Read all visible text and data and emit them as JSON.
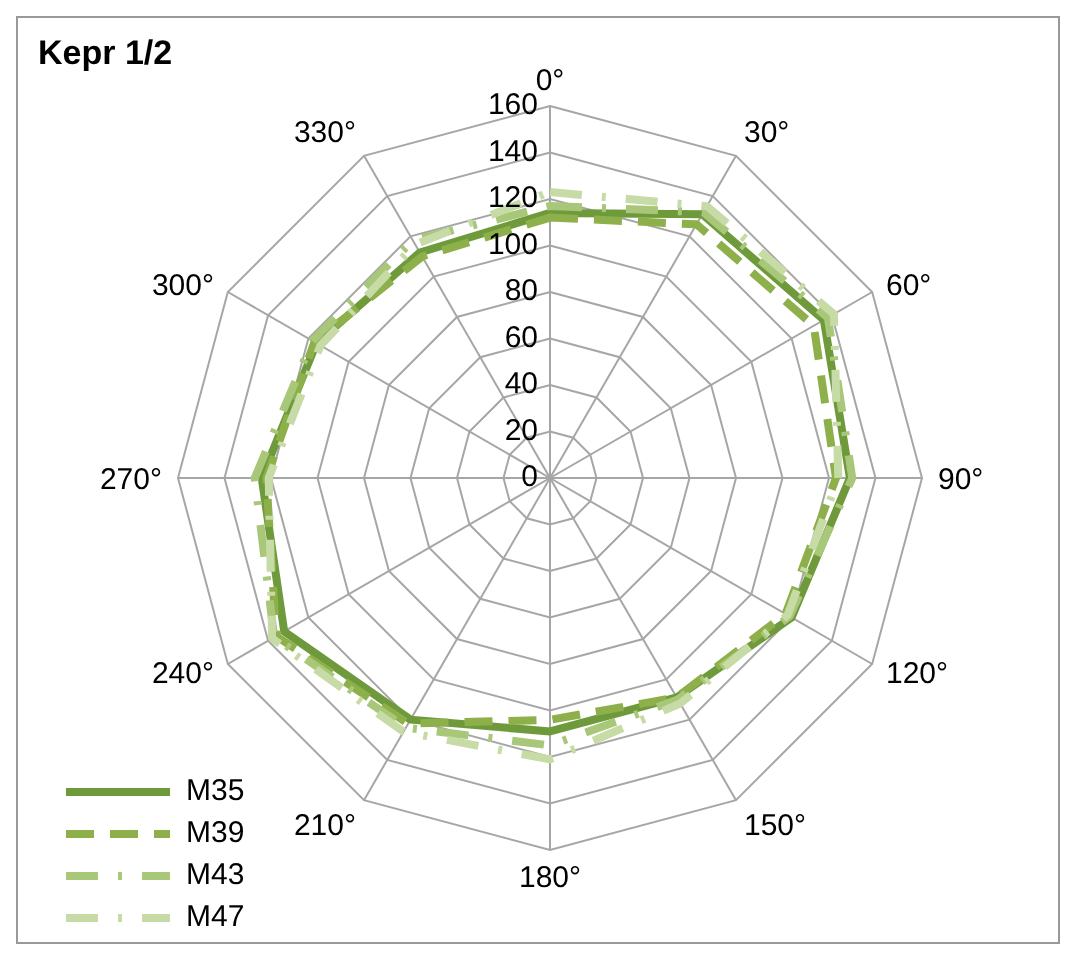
{
  "chart_data": {
    "type": "radar",
    "title": "Kepr 1/2",
    "categories": [
      "0°",
      "30°",
      "60°",
      "90°",
      "120°",
      "150°",
      "180°",
      "210°",
      "240°",
      "270°",
      "300°",
      "330°"
    ],
    "ylim": [
      0,
      160
    ],
    "yticks": [
      0,
      20,
      40,
      60,
      80,
      100,
      120,
      140,
      160
    ],
    "grid": true,
    "legend": "bottom left",
    "marker": "none",
    "series": [
      {
        "name": "M35",
        "color": "#6f9a3c",
        "line_style": "solid",
        "values": [
          114,
          131,
          136,
          129,
          120,
          109,
          109,
          120,
          132,
          124,
          116,
          112
        ]
      },
      {
        "name": "M39",
        "color": "#8db04b",
        "line_style": "dashed",
        "values": [
          112,
          126,
          131,
          123,
          117,
          109,
          104,
          122,
          136,
          122,
          117,
          110
        ]
      },
      {
        "name": "M43",
        "color": "#a8c779",
        "line_style": "dashdot",
        "values": [
          117,
          132,
          138,
          130,
          119,
          110,
          115,
          124,
          137,
          127,
          118,
          118
        ]
      },
      {
        "name": "M47",
        "color": "#c6dba6",
        "line_style": "dashdot",
        "values": [
          123,
          135,
          141,
          124,
          118,
          112,
          121,
          126,
          138,
          121,
          114,
          116
        ]
      }
    ]
  }
}
